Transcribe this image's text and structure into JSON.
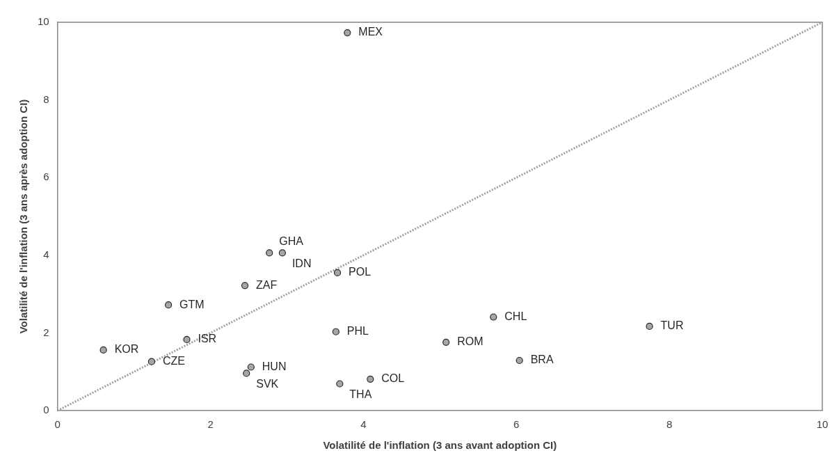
{
  "chart_data": {
    "type": "scatter",
    "xlabel": "Volatilité de l'inflation (3 ans avant adoption CI)",
    "ylabel": "Volatilité de l'inflation (3 ans après adoption CI)",
    "xlim": [
      0,
      10
    ],
    "ylim": [
      0,
      10
    ],
    "xticks": [
      0,
      2,
      4,
      6,
      8,
      10
    ],
    "yticks": [
      0,
      2,
      4,
      6,
      8,
      10
    ],
    "grid": false,
    "legend": false,
    "marker": "circle",
    "series": [
      {
        "type": "scatter",
        "color": "#a6a6a6",
        "x": [
          3.79,
          2.77,
          2.94,
          3.66,
          2.45,
          1.45,
          3.64,
          1.69,
          0.6,
          1.23,
          2.53,
          2.47,
          3.69,
          4.09,
          5.7,
          7.74,
          5.08,
          6.04
        ],
        "values": [
          9.73,
          4.06,
          4.06,
          3.55,
          3.22,
          2.72,
          2.03,
          1.83,
          1.56,
          1.26,
          1.12,
          0.96,
          0.69,
          0.81,
          2.41,
          2.17,
          1.76,
          1.29
        ]
      },
      {
        "type": "line",
        "color": "#a0a0a0",
        "line_style": "dotted",
        "marker": "none",
        "x": [
          0,
          10
        ],
        "values": [
          0,
          10
        ]
      }
    ],
    "annotations": [
      {
        "text": "MEX",
        "x": 3.79,
        "y": 9.73
      },
      {
        "text": "GHA",
        "x": 2.77,
        "y": 4.06
      },
      {
        "text": "IDN",
        "x": 2.94,
        "y": 4.06
      },
      {
        "text": "POL",
        "x": 3.66,
        "y": 3.55
      },
      {
        "text": "ZAF",
        "x": 2.45,
        "y": 3.22
      },
      {
        "text": "GTM",
        "x": 1.45,
        "y": 2.72
      },
      {
        "text": "PHL",
        "x": 3.64,
        "y": 2.03
      },
      {
        "text": "ISR",
        "x": 1.69,
        "y": 1.83
      },
      {
        "text": "KOR",
        "x": 0.6,
        "y": 1.56
      },
      {
        "text": "CZE",
        "x": 1.23,
        "y": 1.26
      },
      {
        "text": "HUN",
        "x": 2.53,
        "y": 1.12
      },
      {
        "text": "SVK",
        "x": 2.47,
        "y": 0.96
      },
      {
        "text": "THA",
        "x": 3.69,
        "y": 0.69
      },
      {
        "text": "COL",
        "x": 4.09,
        "y": 0.81
      },
      {
        "text": "CHL",
        "x": 5.7,
        "y": 2.41
      },
      {
        "text": "TUR",
        "x": 7.74,
        "y": 2.17
      },
      {
        "text": "ROM",
        "x": 5.08,
        "y": 1.76
      },
      {
        "text": "BRA",
        "x": 6.04,
        "y": 1.29
      }
    ]
  }
}
